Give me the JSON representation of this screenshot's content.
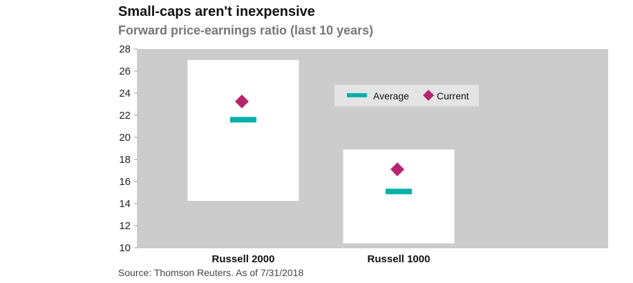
{
  "chart_data": {
    "type": "box-range",
    "title": "Small-caps aren't inexpensive",
    "subtitle": "Forward price-earnings ratio (last 10 years)",
    "ylabel": "",
    "xlabel": "",
    "ylim": [
      10,
      28
    ],
    "yticks": [
      10,
      12,
      14,
      16,
      18,
      20,
      22,
      24,
      26,
      28
    ],
    "categories": [
      "Russell 2000",
      "Russell 1000"
    ],
    "range_high": [
      27.0,
      18.9
    ],
    "range_low": [
      14.25,
      10.4
    ],
    "series": [
      {
        "name": "Average",
        "values": [
          21.6,
          15.1
        ],
        "color": "#00b1a9"
      },
      {
        "name": "Current",
        "values": [
          23.25,
          17.1
        ],
        "color": "#b5266f"
      }
    ],
    "legend_position": "top-right",
    "source": "Source: Thomson Reuters. As of 7/31/2018"
  }
}
